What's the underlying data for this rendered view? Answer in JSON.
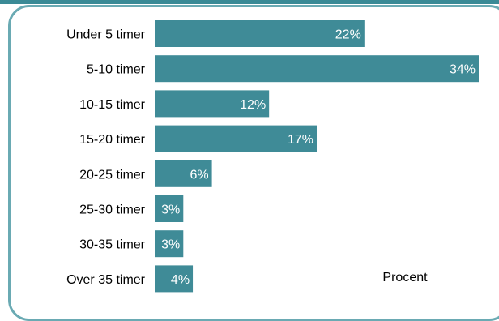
{
  "chart_data": {
    "type": "bar",
    "orientation": "horizontal",
    "categories": [
      "Under 5 timer",
      "5-10 timer",
      "10-15 timer",
      "15-20 timer",
      "20-25 timer",
      "25-30 timer",
      "30-35 timer",
      "Over 35 timer"
    ],
    "values": [
      22,
      34,
      12,
      17,
      6,
      3,
      3,
      4
    ],
    "data_labels": [
      "22%",
      "34%",
      "12%",
      "17%",
      "6%",
      "3%",
      "3%",
      "4%"
    ],
    "unit_label": "Procent",
    "xlim": [
      0,
      34
    ],
    "grid": false,
    "bar_color": "#3f8b97",
    "frame_color": "#6aaab3",
    "label_color": "#ffffff",
    "text_color": "#000000"
  }
}
